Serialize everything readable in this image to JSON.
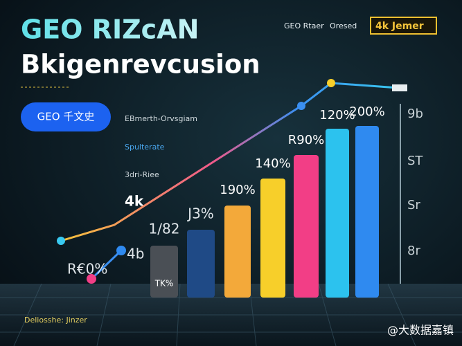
{
  "header": {
    "title": "GEO RIZcAN",
    "subtitle": "Bkigenrevcusion"
  },
  "top_nav": [
    "GEO Rtaer",
    "Oresed"
  ],
  "badge": "4k Jemer",
  "button": "GEO 千文史",
  "side_labels": [
    "EBmerth-Orvsgiam",
    "Spulterate",
    "3dri-Riee",
    "4k"
  ],
  "chart_labels": [
    "R€0%",
    "4b"
  ],
  "bars": [
    {
      "label": "1/82",
      "caption": "TK%"
    },
    {
      "label": "J3%"
    },
    {
      "label": "190%"
    },
    {
      "label": "140%"
    },
    {
      "label": "R90%"
    },
    {
      "label": "120%"
    },
    {
      "label": "200%"
    }
  ],
  "axis_labels": [
    "9b",
    "ST",
    "Sr",
    "8r"
  ],
  "footer": "Deliosshe: Jinzer",
  "watermark": "@大数据嘉镇"
}
